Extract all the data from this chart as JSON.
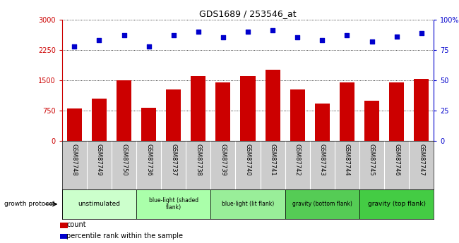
{
  "title": "GDS1689 / 253546_at",
  "samples": [
    "GSM87748",
    "GSM87749",
    "GSM87750",
    "GSM87736",
    "GSM87737",
    "GSM87738",
    "GSM87739",
    "GSM87740",
    "GSM87741",
    "GSM87742",
    "GSM87743",
    "GSM87744",
    "GSM87745",
    "GSM87746",
    "GSM87747"
  ],
  "counts": [
    800,
    1050,
    1500,
    820,
    1280,
    1600,
    1450,
    1600,
    1750,
    1280,
    920,
    1450,
    1000,
    1450,
    1530
  ],
  "percentiles": [
    78,
    83,
    87,
    78,
    87,
    90,
    85,
    90,
    91,
    85,
    83,
    87,
    82,
    86,
    89
  ],
  "ylim_left": [
    0,
    3000
  ],
  "ylim_right": [
    0,
    100
  ],
  "yticks_left": [
    0,
    750,
    1500,
    2250,
    3000
  ],
  "yticks_right": [
    0,
    25,
    50,
    75,
    100
  ],
  "bar_color": "#cc0000",
  "dot_color": "#0000cc",
  "groups": [
    {
      "label": "unstimulated",
      "start": 0,
      "end": 3
    },
    {
      "label": "blue-light (shaded\nflank)",
      "start": 3,
      "end": 6
    },
    {
      "label": "blue-light (lit flank)",
      "start": 6,
      "end": 9
    },
    {
      "label": "gravity (bottom flank)",
      "start": 9,
      "end": 12
    },
    {
      "label": "gravity (top flank)",
      "start": 12,
      "end": 15
    }
  ],
  "group_colors": [
    "#ccffcc",
    "#aaffaa",
    "#99ee99",
    "#55cc55",
    "#44cc44"
  ],
  "tick_color_left": "#cc0000",
  "tick_color_right": "#0000cc",
  "legend_count_color": "#cc0000",
  "legend_pct_color": "#0000cc",
  "bg_gray": "#cccccc",
  "white": "#ffffff"
}
